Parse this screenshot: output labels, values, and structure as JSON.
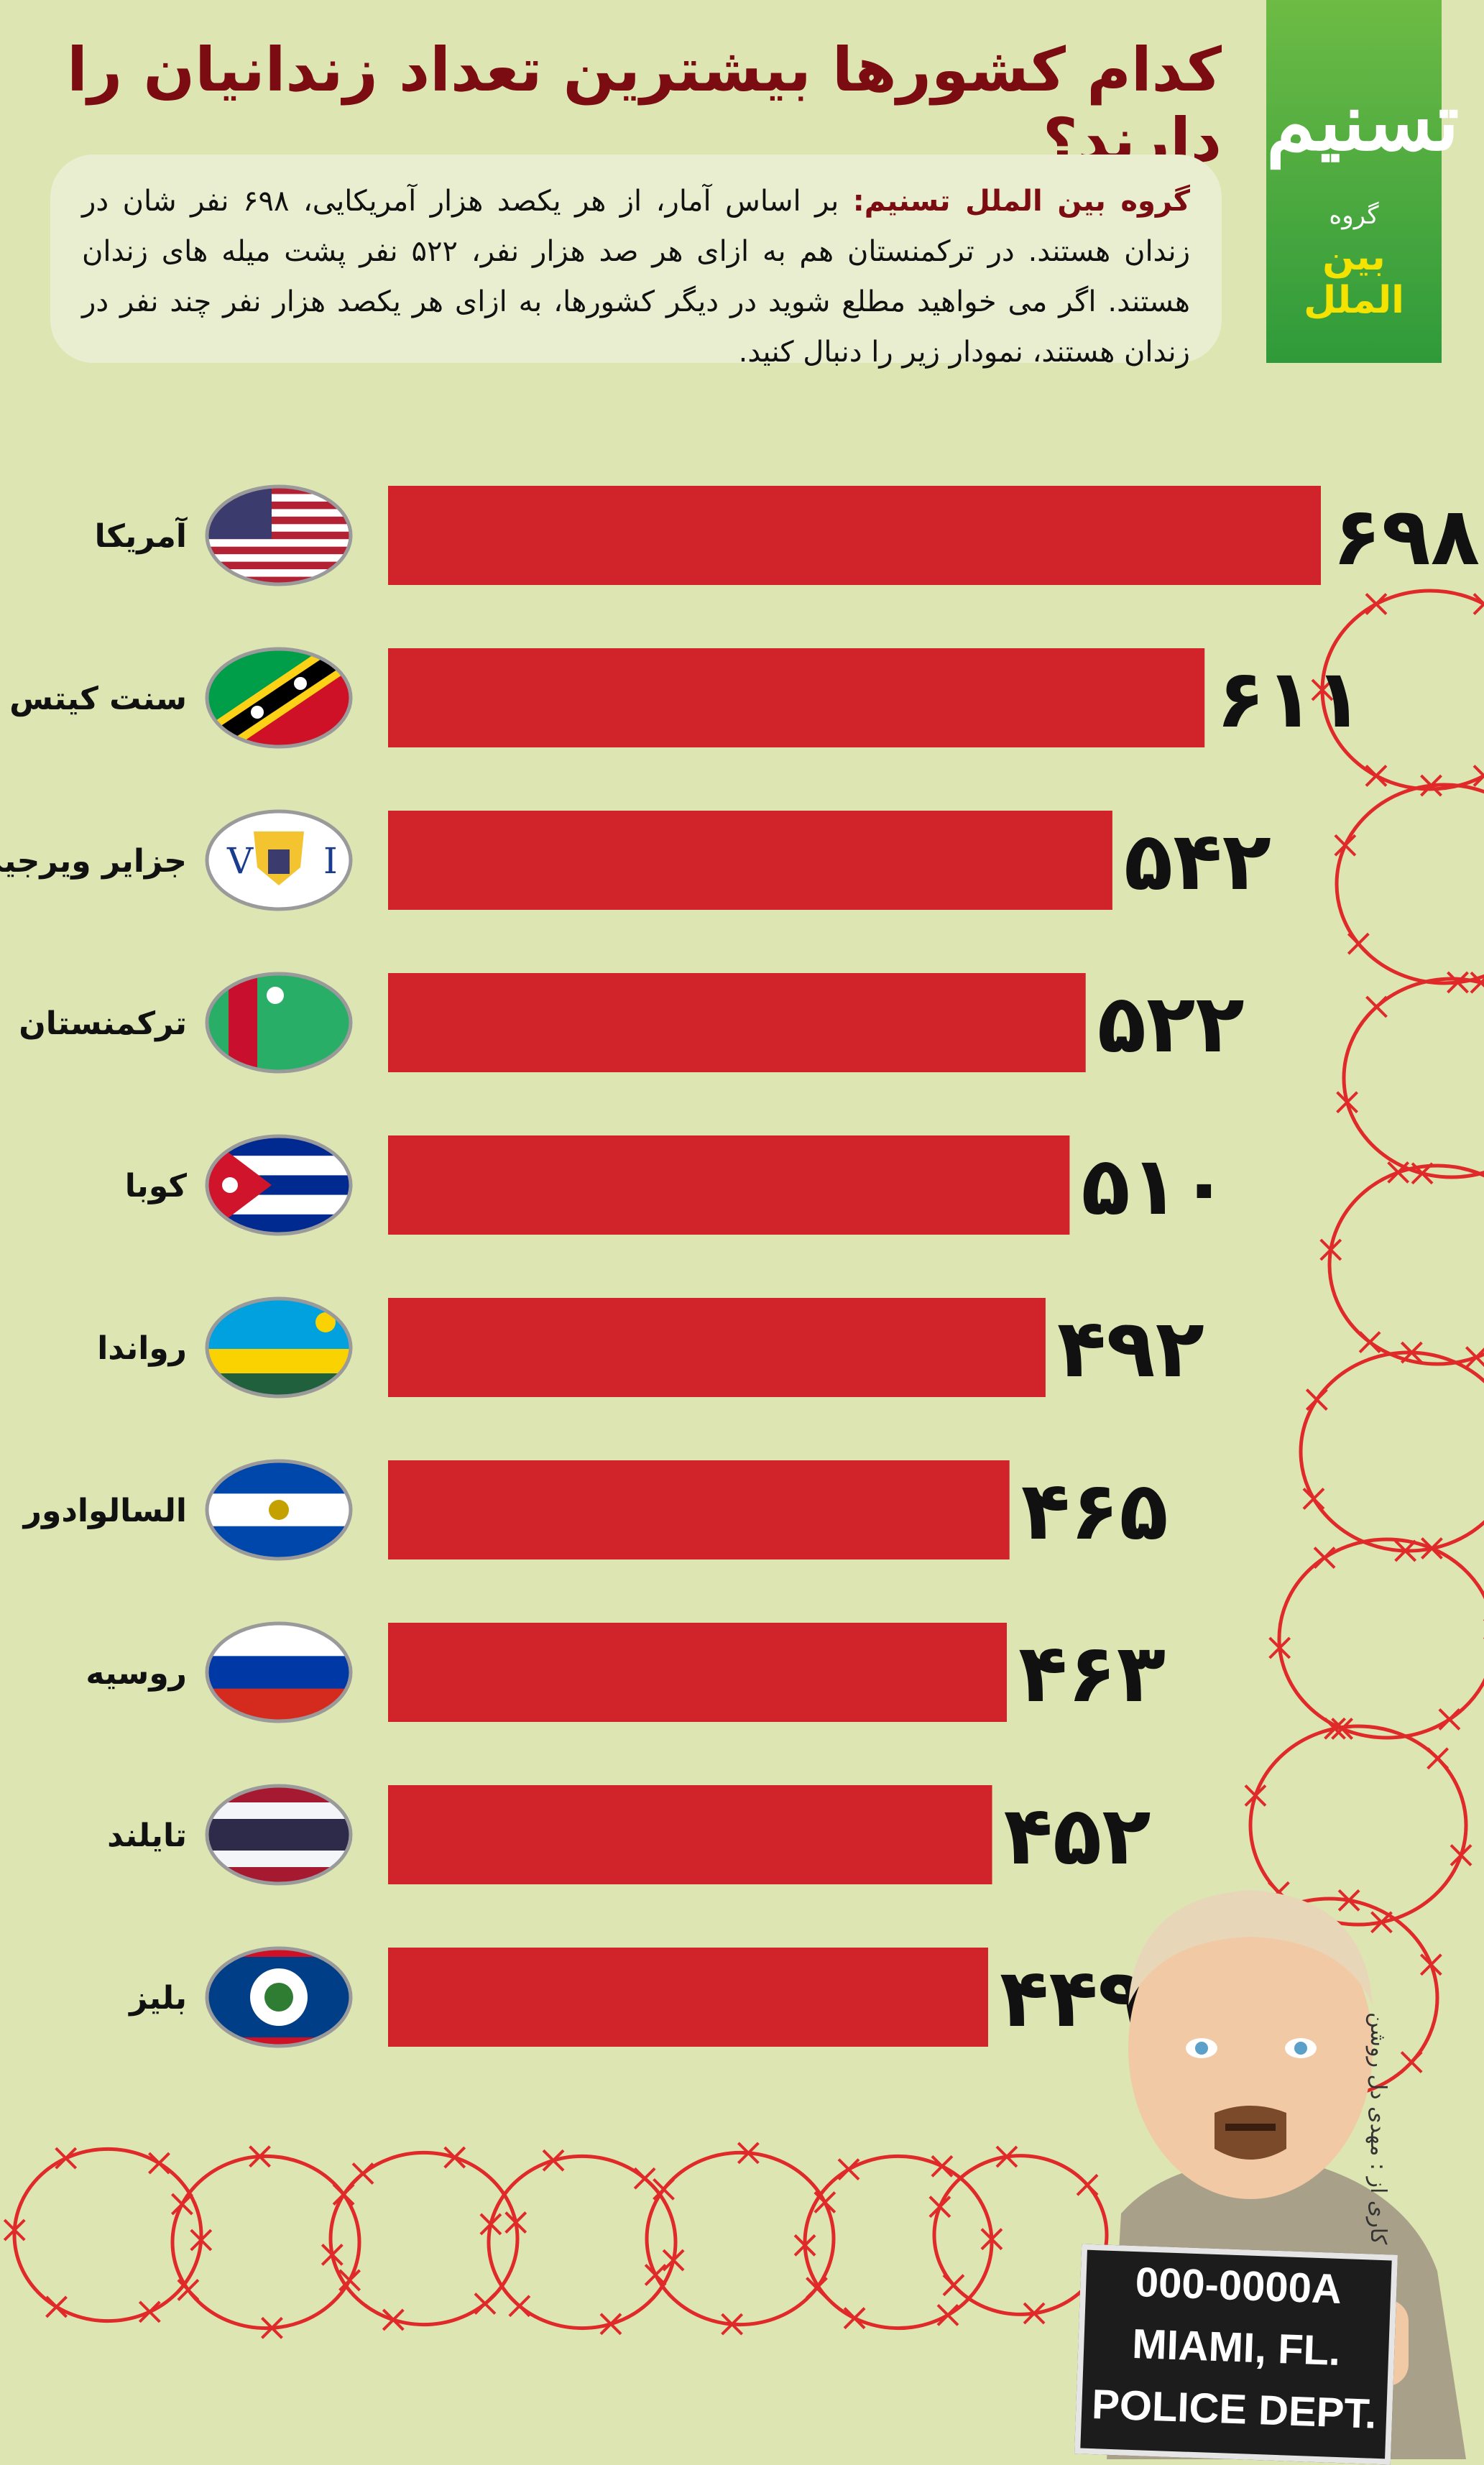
{
  "header": {
    "title": "کدام کشورها بیشترین تعداد زندانیان را دارند؟",
    "intro_lead": "گروه بین الملل تسنیم:",
    "intro_text": "بر اساس آمار، از هر یکصد هزار آمریکایی، ۶۹۸ نفر شان در زندان هستند. در ترکمنستان هم به ازای هر صد هزار نفر، ۵۲۲ نفر پشت میله های زندان هستند. اگر می خواهید مطلع شوید در دیگر کشورها، به ازای هر یکصد هزار نفر چند نفر در زندان هستند، نمودار زیر را دنبال کنید."
  },
  "logo": {
    "mark": "تسنیم",
    "group_label": "گروه",
    "department": "بین الملل"
  },
  "credit": "کاری از : مهدی دل روشن",
  "mugshot_board": {
    "line1": "000-0000A",
    "line2": "MIAMI, FL.",
    "line3": "POLICE DEPT."
  },
  "colors": {
    "background": "#dde5b3",
    "bar": "#d0232a",
    "wire": "#e02a2a",
    "title": "#7a0c12"
  },
  "chart_data": {
    "type": "bar",
    "orientation": "horizontal",
    "categories": [
      "آمریکا",
      "سنت کیتس",
      "جزایر ویرجین",
      "ترکمنستان",
      "کوبا",
      "رواندا",
      "السالوادور",
      "روسیه",
      "تایلند",
      "بلیز"
    ],
    "values": [
      698,
      611,
      542,
      522,
      510,
      492,
      465,
      463,
      452,
      449
    ],
    "value_labels": [
      "۶۹۸",
      "۶۱۱",
      "۵۴۲",
      "۵۲۲",
      "۵۱۰",
      "۴۹۲",
      "۴۶۵",
      "۴۶۳",
      "۴۵۲",
      "۴۴۹"
    ],
    "flag_icons": [
      "usa-flag-icon",
      "saint-kitts-flag-icon",
      "virgin-islands-flag-icon",
      "turkmenistan-flag-icon",
      "cuba-flag-icon",
      "rwanda-flag-icon",
      "el-salvador-flag-icon",
      "russia-flag-icon",
      "thailand-flag-icon",
      "belize-flag-icon"
    ],
    "xlim": [
      0,
      698
    ],
    "grid": false,
    "legend": "none"
  }
}
